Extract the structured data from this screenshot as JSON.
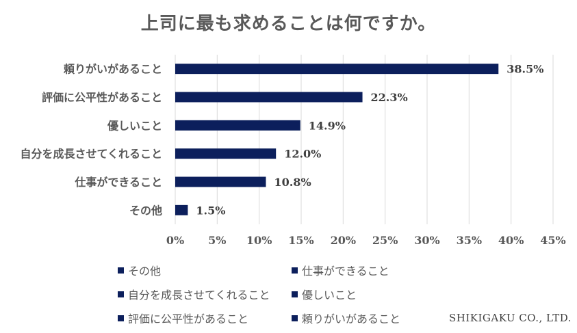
{
  "chart_data": {
    "type": "bar",
    "orientation": "horizontal",
    "title": "上司に最も求めることは何ですか。",
    "categories": [
      "頼りがいがあること",
      "評価に公平性があること",
      "優しいこと",
      "自分を成長させてくれること",
      "仕事ができること",
      "その他"
    ],
    "values": [
      38.5,
      22.3,
      14.9,
      12.0,
      10.8,
      1.5
    ],
    "value_labels": [
      "38.5%",
      "22.3%",
      "14.9%",
      "12.0%",
      "10.8%",
      "1.5%"
    ],
    "x_ticks": [
      "0%",
      "5%",
      "10%",
      "15%",
      "20%",
      "25%",
      "30%",
      "35%",
      "40%",
      "45%"
    ],
    "xlim": [
      0,
      45
    ],
    "grid": true,
    "bar_color": "#0c1f5c",
    "legend": [
      "その他",
      "仕事ができること",
      "自分を成長させてくれること",
      "優しいこと",
      "評価に公平性があること",
      "頼りがいがあること"
    ],
    "legend_position": "bottom"
  },
  "footer": {
    "company": "SHIKIGAKU CO., LTD."
  }
}
